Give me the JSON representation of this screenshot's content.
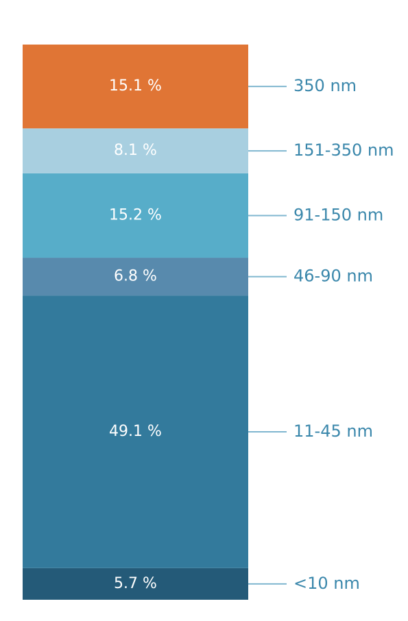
{
  "chart_data": {
    "type": "bar",
    "stacked": true,
    "categories": [
      null
    ],
    "series": [
      {
        "name": "<10 nm",
        "color": "#245a78",
        "values": [
          5.7
        ],
        "value_labels": [
          "5.7 %"
        ]
      },
      {
        "name": "11-45 nm",
        "color": "#337a9c",
        "values": [
          49.1
        ],
        "value_labels": [
          "49.1 %"
        ]
      },
      {
        "name": "46-90 nm",
        "color": "#588aad",
        "values": [
          6.8
        ],
        "value_labels": [
          "6.8 %"
        ]
      },
      {
        "name": "91-150 nm",
        "color": "#57adc9",
        "values": [
          15.2
        ],
        "value_labels": [
          "15.2 %"
        ]
      },
      {
        "name": "151-350 nm",
        "color": "#a8cfe0",
        "values": [
          8.1
        ],
        "value_labels": [
          "8.1 %"
        ]
      },
      {
        "name": "350 nm",
        "color": "#e07535",
        "values": [
          15.1
        ],
        "value_labels": [
          "15.1 %"
        ]
      }
    ]
  }
}
